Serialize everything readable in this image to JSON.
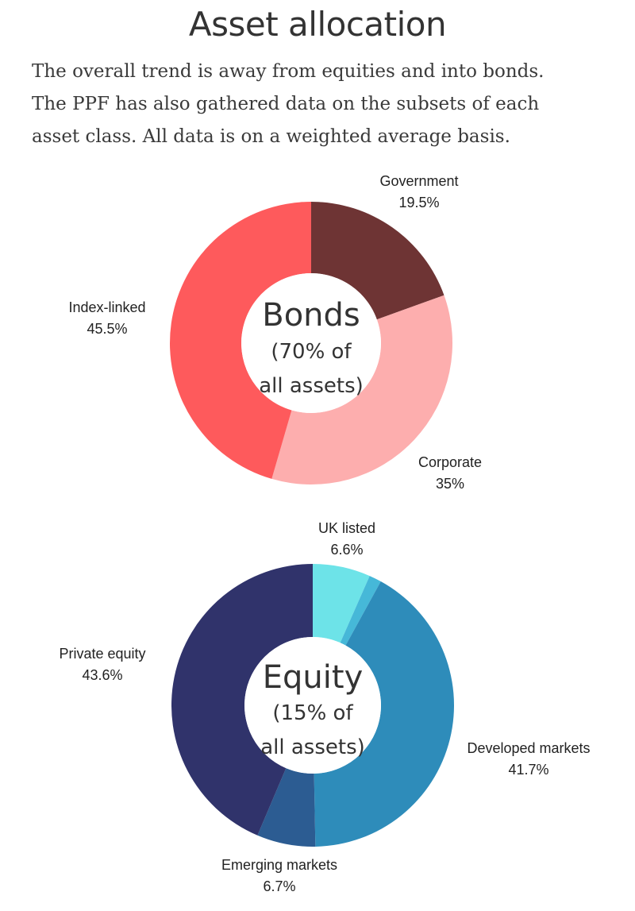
{
  "title": "Asset allocation",
  "subtitle_lines": [
    "The overall trend is away from equities and into bonds.",
    "The PPF has also gathered data on the subsets of each",
    "asset class. All data is on a weighted average basis."
  ],
  "chart_data": [
    {
      "type": "pie",
      "center_title": "Bonds",
      "center_sub_lines": [
        "(70% of",
        "all assets)"
      ],
      "series": [
        {
          "name": "Government",
          "value": 19.5,
          "label": "19.5%",
          "color": "#6e3434"
        },
        {
          "name": "Corporate",
          "value": 35,
          "label": "35%",
          "color": "#fdaeae"
        },
        {
          "name": "Index-linked",
          "value": 45.5,
          "label": "45.5%",
          "color": "#fe5a5c"
        }
      ]
    },
    {
      "type": "pie",
      "center_title": "Equity",
      "center_sub_lines": [
        "(15% of",
        "all assets)"
      ],
      "series": [
        {
          "name": "UK listed",
          "value": 6.6,
          "label": "6.6%",
          "color": "#6de3e8"
        },
        {
          "name": "",
          "value": 1.4,
          "label": "",
          "color": "#46b8d8"
        },
        {
          "name": "Developed markets",
          "value": 41.7,
          "label": "41.7%",
          "color": "#2e8cba"
        },
        {
          "name": "Emerging markets",
          "value": 6.7,
          "label": "6.7%",
          "color": "#2c5c92"
        },
        {
          "name": "Private equity",
          "value": 43.6,
          "label": "43.6%",
          "color": "#30336b"
        }
      ]
    }
  ]
}
